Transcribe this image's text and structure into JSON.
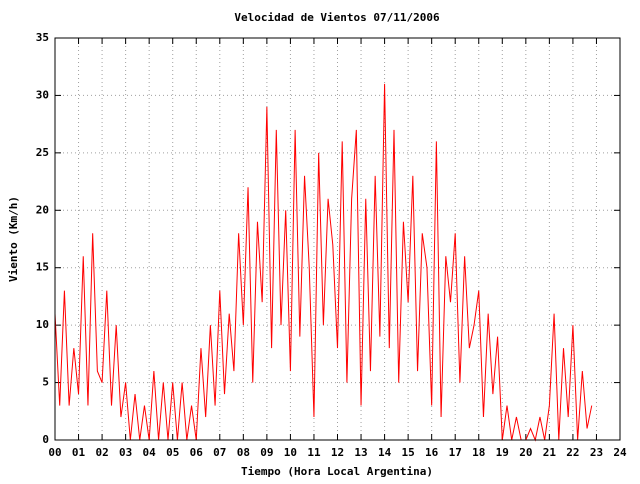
{
  "chart_data": {
    "type": "line",
    "title": "Velocidad de Vientos 07/11/2006",
    "xlabel": "Tiempo (Hora Local Argentina)",
    "ylabel": "Viento (Km/h)",
    "x": [
      0,
      0.2,
      0.4,
      0.6,
      0.8,
      1,
      1.2,
      1.4,
      1.6,
      1.8,
      2,
      2.2,
      2.4,
      2.6,
      2.8,
      3,
      3.2,
      3.4,
      3.6,
      3.8,
      4,
      4.2,
      4.4,
      4.6,
      4.8,
      5,
      5.2,
      5.4,
      5.6,
      5.8,
      6,
      6.2,
      6.4,
      6.6,
      6.8,
      7,
      7.2,
      7.4,
      7.6,
      7.8,
      8,
      8.2,
      8.4,
      8.6,
      8.8,
      9,
      9.2,
      9.4,
      9.6,
      9.8,
      10,
      10.2,
      10.4,
      10.6,
      10.8,
      11,
      11.2,
      11.4,
      11.6,
      11.8,
      12,
      12.2,
      12.4,
      12.6,
      12.8,
      13,
      13.2,
      13.4,
      13.6,
      13.8,
      14,
      14.2,
      14.4,
      14.6,
      14.8,
      15,
      15.2,
      15.4,
      15.6,
      15.8,
      16,
      16.2,
      16.4,
      16.6,
      16.8,
      17,
      17.2,
      17.4,
      17.6,
      17.8,
      18,
      18.2,
      18.4,
      18.6,
      18.8,
      19,
      19.2,
      19.4,
      19.6,
      19.8,
      20,
      20.2,
      20.4,
      20.6,
      20.8,
      21,
      21.2,
      21.4,
      21.6,
      21.8,
      22,
      22.2,
      22.4,
      22.6,
      22.8
    ],
    "series": [
      {
        "name": "Viento",
        "color": "#ff0000",
        "values": [
          11,
          3,
          13,
          3,
          8,
          4,
          16,
          3,
          18,
          6,
          5,
          13,
          3,
          10,
          2,
          5,
          0,
          4,
          0,
          3,
          0,
          6,
          0,
          5,
          0,
          5,
          0,
          5,
          0,
          3,
          0,
          8,
          2,
          10,
          3,
          13,
          4,
          11,
          6,
          18,
          10,
          22,
          5,
          19,
          12,
          29,
          8,
          27,
          10,
          20,
          6,
          27,
          9,
          23,
          15,
          2,
          25,
          10,
          21,
          17,
          8,
          26,
          5,
          21,
          27,
          3,
          21,
          6,
          23,
          9,
          31,
          8,
          27,
          5,
          19,
          12,
          23,
          6,
          18,
          15,
          3,
          26,
          2,
          16,
          12,
          18,
          5,
          16,
          8,
          10,
          13,
          2,
          11,
          4,
          9,
          0,
          3,
          0,
          2,
          0,
          0,
          1,
          0,
          2,
          0,
          3,
          11,
          0,
          8,
          2,
          10,
          0,
          6,
          1,
          3
        ]
      }
    ],
    "xlim": [
      0,
      24
    ],
    "xticks": [
      {
        "value": 0,
        "label": "00"
      },
      {
        "value": 1,
        "label": "01"
      },
      {
        "value": 2,
        "label": "02"
      },
      {
        "value": 3,
        "label": "03"
      },
      {
        "value": 4,
        "label": "04"
      },
      {
        "value": 5,
        "label": "05"
      },
      {
        "value": 6,
        "label": "06"
      },
      {
        "value": 7,
        "label": "07"
      },
      {
        "value": 8,
        "label": "08"
      },
      {
        "value": 9,
        "label": "09"
      },
      10,
      11,
      12,
      13,
      14,
      15,
      16,
      17,
      18,
      19,
      20,
      21,
      22,
      23,
      24
    ],
    "ylim": [
      0,
      35
    ],
    "yticks": [
      0,
      5,
      10,
      15,
      20,
      25,
      30,
      35
    ],
    "grid": true
  }
}
